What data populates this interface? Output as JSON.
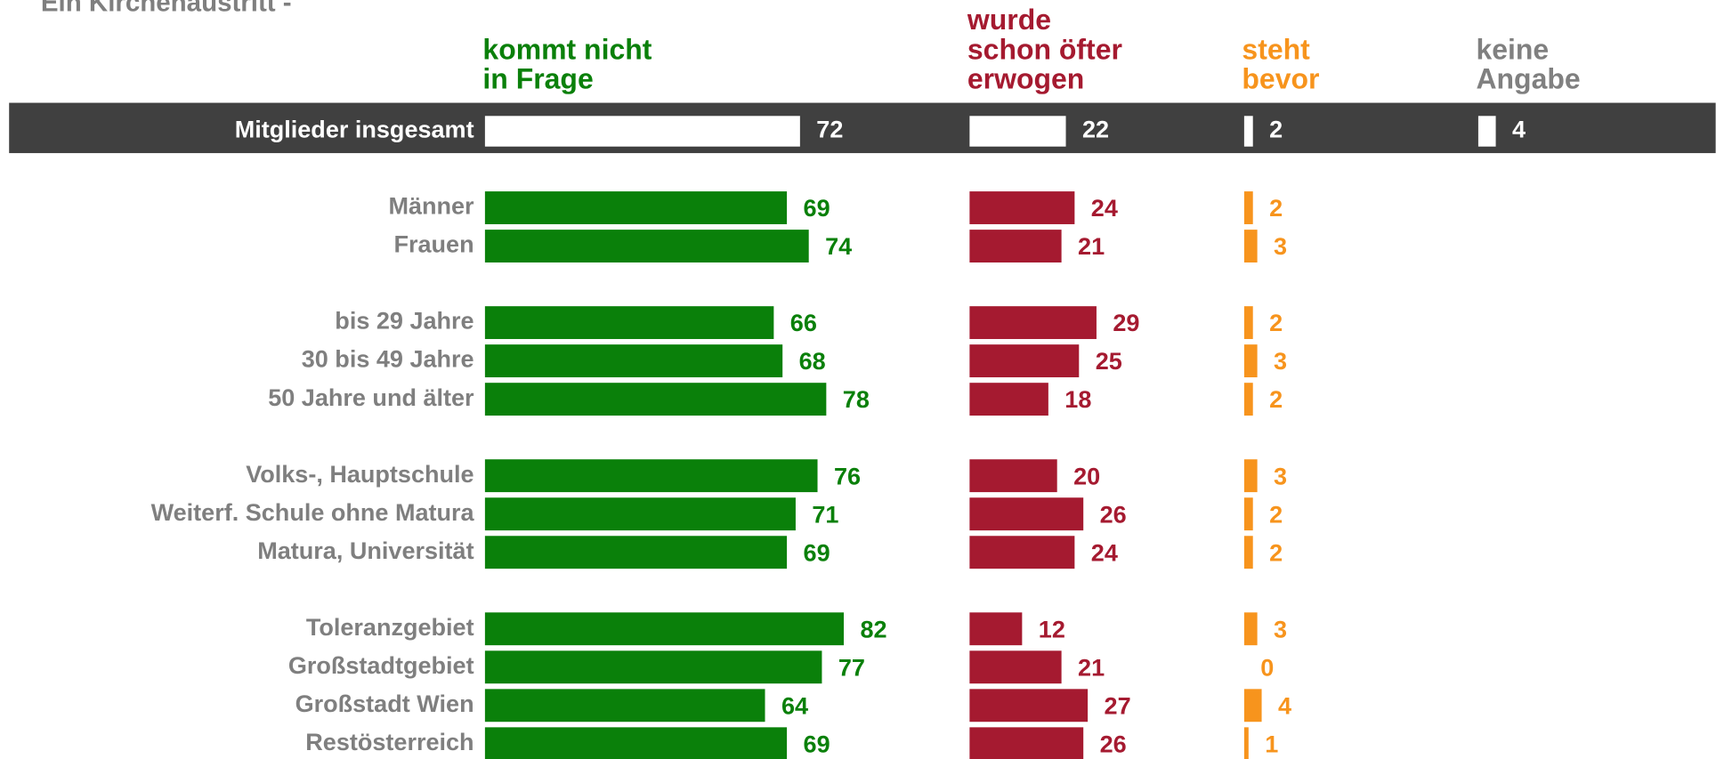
{
  "chart_data": {
    "type": "bar",
    "title": "Ein Kirchenaustritt -",
    "categories": [
      "Mitglieder insgesamt",
      "Männer",
      "Frauen",
      "bis 29 Jahre",
      "30 bis 49 Jahre",
      "50 Jahre und älter",
      "Volks-, Hauptschule",
      "Weiterf. Schule ohne Matura",
      "Matura, Universität",
      "Toleranzgebiet",
      "Großstadtgebiet",
      "Großstadt Wien",
      "Restösterreich"
    ],
    "series": [
      {
        "name": "kommt nicht\nin Frage",
        "color": "#0a800a",
        "values": [
          72,
          69,
          74,
          66,
          68,
          78,
          76,
          71,
          69,
          82,
          77,
          64,
          69
        ]
      },
      {
        "name": "wurde\nschon öfter\nerwogen",
        "color": "#a51a30",
        "values": [
          22,
          24,
          21,
          29,
          25,
          18,
          20,
          26,
          24,
          12,
          21,
          27,
          26
        ]
      },
      {
        "name": "steht\nbevor",
        "color": "#f7941d",
        "values": [
          2,
          2,
          3,
          2,
          3,
          2,
          3,
          2,
          2,
          3,
          0,
          4,
          1
        ]
      },
      {
        "name": "keine\nAngabe",
        "color": "#808080",
        "values": [
          4,
          null,
          null,
          null,
          null,
          null,
          null,
          null,
          null,
          null,
          null,
          null,
          null
        ]
      }
    ]
  }
}
